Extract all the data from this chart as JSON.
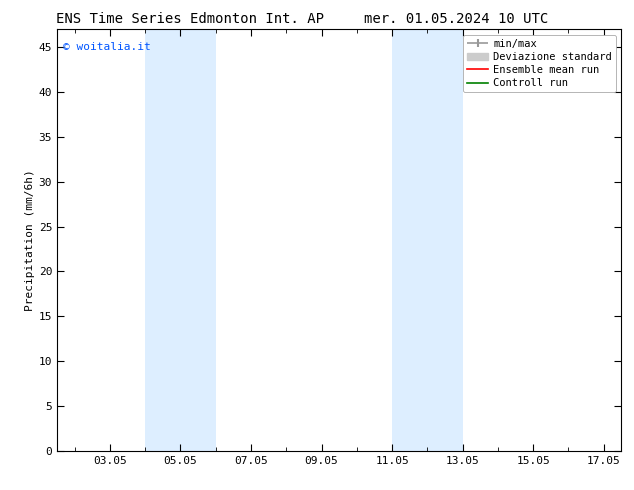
{
  "title_left": "ENS Time Series Edmonton Int. AP",
  "title_right": "mer. 01.05.2024 10 UTC",
  "ylabel": "Precipitation (mm/6h)",
  "xlabel": "",
  "ylim": [
    0,
    47
  ],
  "yticks": [
    0,
    5,
    10,
    15,
    20,
    25,
    30,
    35,
    40,
    45
  ],
  "xlim_min": 1.5,
  "xlim_max": 17.5,
  "xtick_labels": [
    "03.05",
    "05.05",
    "07.05",
    "09.05",
    "11.05",
    "13.05",
    "15.05",
    "17.05"
  ],
  "xtick_positions": [
    3,
    5,
    7,
    9,
    11,
    13,
    15,
    17
  ],
  "shaded_bands": [
    {
      "xmin": 4.0,
      "xmax": 6.0,
      "color": "#ddeeff",
      "alpha": 1.0
    },
    {
      "xmin": 11.0,
      "xmax": 13.0,
      "color": "#ddeeff",
      "alpha": 1.0
    }
  ],
  "watermark_text": "© woitalia.it",
  "watermark_color": "#0055ff",
  "background_color": "#ffffff",
  "legend_entries": [
    {
      "label": "min/max",
      "color": "#999999",
      "lw": 1.2,
      "ls": "-"
    },
    {
      "label": "Deviazione standard",
      "color": "#cccccc",
      "lw": 6,
      "ls": "-"
    },
    {
      "label": "Ensemble mean run",
      "color": "#ff0000",
      "lw": 1.2,
      "ls": "-"
    },
    {
      "label": "Controll run",
      "color": "#008000",
      "lw": 1.2,
      "ls": "-"
    }
  ],
  "tick_direction": "in",
  "grid": false,
  "title_fontsize": 10,
  "ylabel_fontsize": 8,
  "tick_fontsize": 8,
  "legend_fontsize": 7.5,
  "watermark_fontsize": 8
}
